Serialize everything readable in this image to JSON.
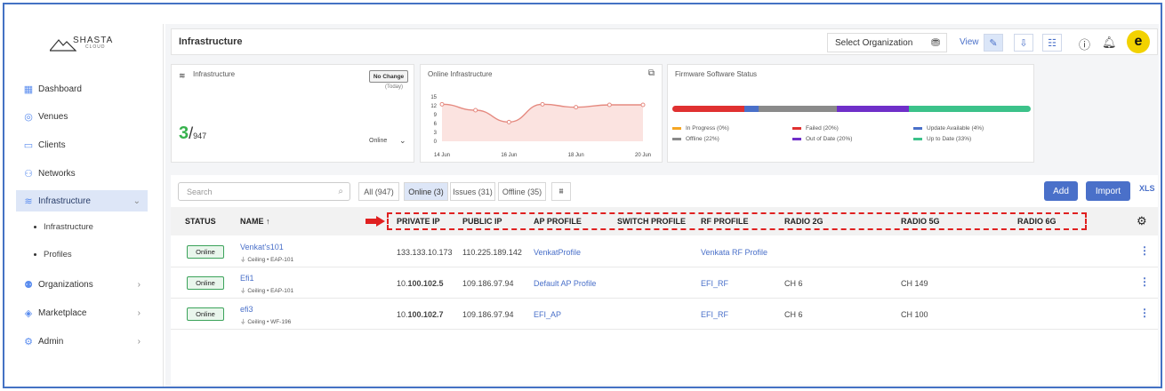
{
  "sidebar": {
    "logo_text": "SHASTA",
    "logo_sub": "CLOUD",
    "items": [
      {
        "label": "Dashboard",
        "icon": "dashboard-icon"
      },
      {
        "label": "Venues",
        "icon": "location-pin-icon"
      },
      {
        "label": "Clients",
        "icon": "clients-icon"
      },
      {
        "label": "Networks",
        "icon": "network-icon"
      },
      {
        "label": "Infrastructure",
        "icon": "router-icon"
      },
      {
        "label": "Organizations",
        "icon": "organizations-icon"
      },
      {
        "label": "Marketplace",
        "icon": "marketplace-icon"
      },
      {
        "label": "Admin",
        "icon": "gear-icon"
      }
    ],
    "subitems": [
      "Infrastructure",
      "Profiles"
    ]
  },
  "header": {
    "title": "Infrastructure",
    "select_org": "Select Organization",
    "view_label": "View"
  },
  "cards": {
    "infra": {
      "title": "Infrastructure",
      "badge": "No Change",
      "badge_sub": "(Today)",
      "count": "3",
      "total": "947",
      "filter": "Online"
    },
    "online": {
      "title": "Online Infrastructure"
    },
    "firmware": {
      "title": "Firmware Software Status",
      "legend": [
        {
          "label": "In Progress (0%)",
          "color": "#f5a623"
        },
        {
          "label": "Failed (20%)",
          "color": "#e03131"
        },
        {
          "label": "Update Available (4%)",
          "color": "#4a70c9"
        },
        {
          "label": "Offline (22%)",
          "color": "#8a8a8a"
        },
        {
          "label": "Out of Date (20%)",
          "color": "#6f2fc9"
        },
        {
          "label": "Up to Date (33%)",
          "color": "#3cc28a"
        }
      ]
    }
  },
  "chart_data": {
    "type": "area",
    "x": [
      "14 Jun",
      "15 Jun",
      "16 Jun",
      "17 Jun",
      "18 Jun",
      "19 Jun",
      "20 Jun"
    ],
    "x_ticks": [
      "14 Jun",
      "16 Jun",
      "18 Jun",
      "20 Jun"
    ],
    "y_ticks": [
      "15",
      "12",
      "9",
      "6",
      "3",
      "0"
    ],
    "values": [
      12.5,
      10.5,
      6.5,
      12.5,
      11.5,
      12.3,
      12.3
    ],
    "ylim": [
      0,
      15
    ],
    "color": "#e58a80",
    "fill": "#fbe3e0"
  },
  "filters": {
    "search_placeholder": "Search",
    "tabs": [
      "All (947)",
      "Online (3)",
      "Issues (31)",
      "Offline (35)"
    ],
    "add": "Add",
    "import": "Import",
    "export": "XLS"
  },
  "table": {
    "headers": [
      "STATUS",
      "NAME ↑",
      "PRIVATE IP",
      "PUBLIC IP",
      "AP PROFILE",
      "SWITCH PROFILE",
      "RF PROFILE",
      "RADIO 2G",
      "RADIO 5G",
      "RADIO 6G"
    ],
    "rows": [
      {
        "status": "Online",
        "name": "Venkat's101",
        "sub": "Ceiling • EAP-101",
        "private_ip_a": "133.133.10.173",
        "private_ip_b": "",
        "public_ip": "110.225.189.142",
        "ap_profile": "VenkatProfile",
        "switch_profile": "",
        "rf_profile": "Venkata RF Profile",
        "radio2g": "",
        "radio5g": "",
        "radio6g": ""
      },
      {
        "status": "Online",
        "name": "Efi1",
        "sub": "Ceiling • EAP-101",
        "private_ip_a": "10.",
        "private_ip_b": "100.102.5",
        "public_ip": "109.186.97.94",
        "ap_profile": "Default AP Profile",
        "switch_profile": "",
        "rf_profile": "EFI_RF",
        "radio2g": "CH 6",
        "radio5g": "CH 149",
        "radio6g": ""
      },
      {
        "status": "Online",
        "name": "efi3",
        "sub": "Ceiling • WF-196",
        "private_ip_a": "10.",
        "private_ip_b": "100.102.7",
        "public_ip": "109.186.97.94",
        "ap_profile": "EFI_AP",
        "switch_profile": "",
        "rf_profile": "EFI_RF",
        "radio2g": "CH 6",
        "radio5g": "CH 100",
        "radio6g": ""
      }
    ]
  }
}
